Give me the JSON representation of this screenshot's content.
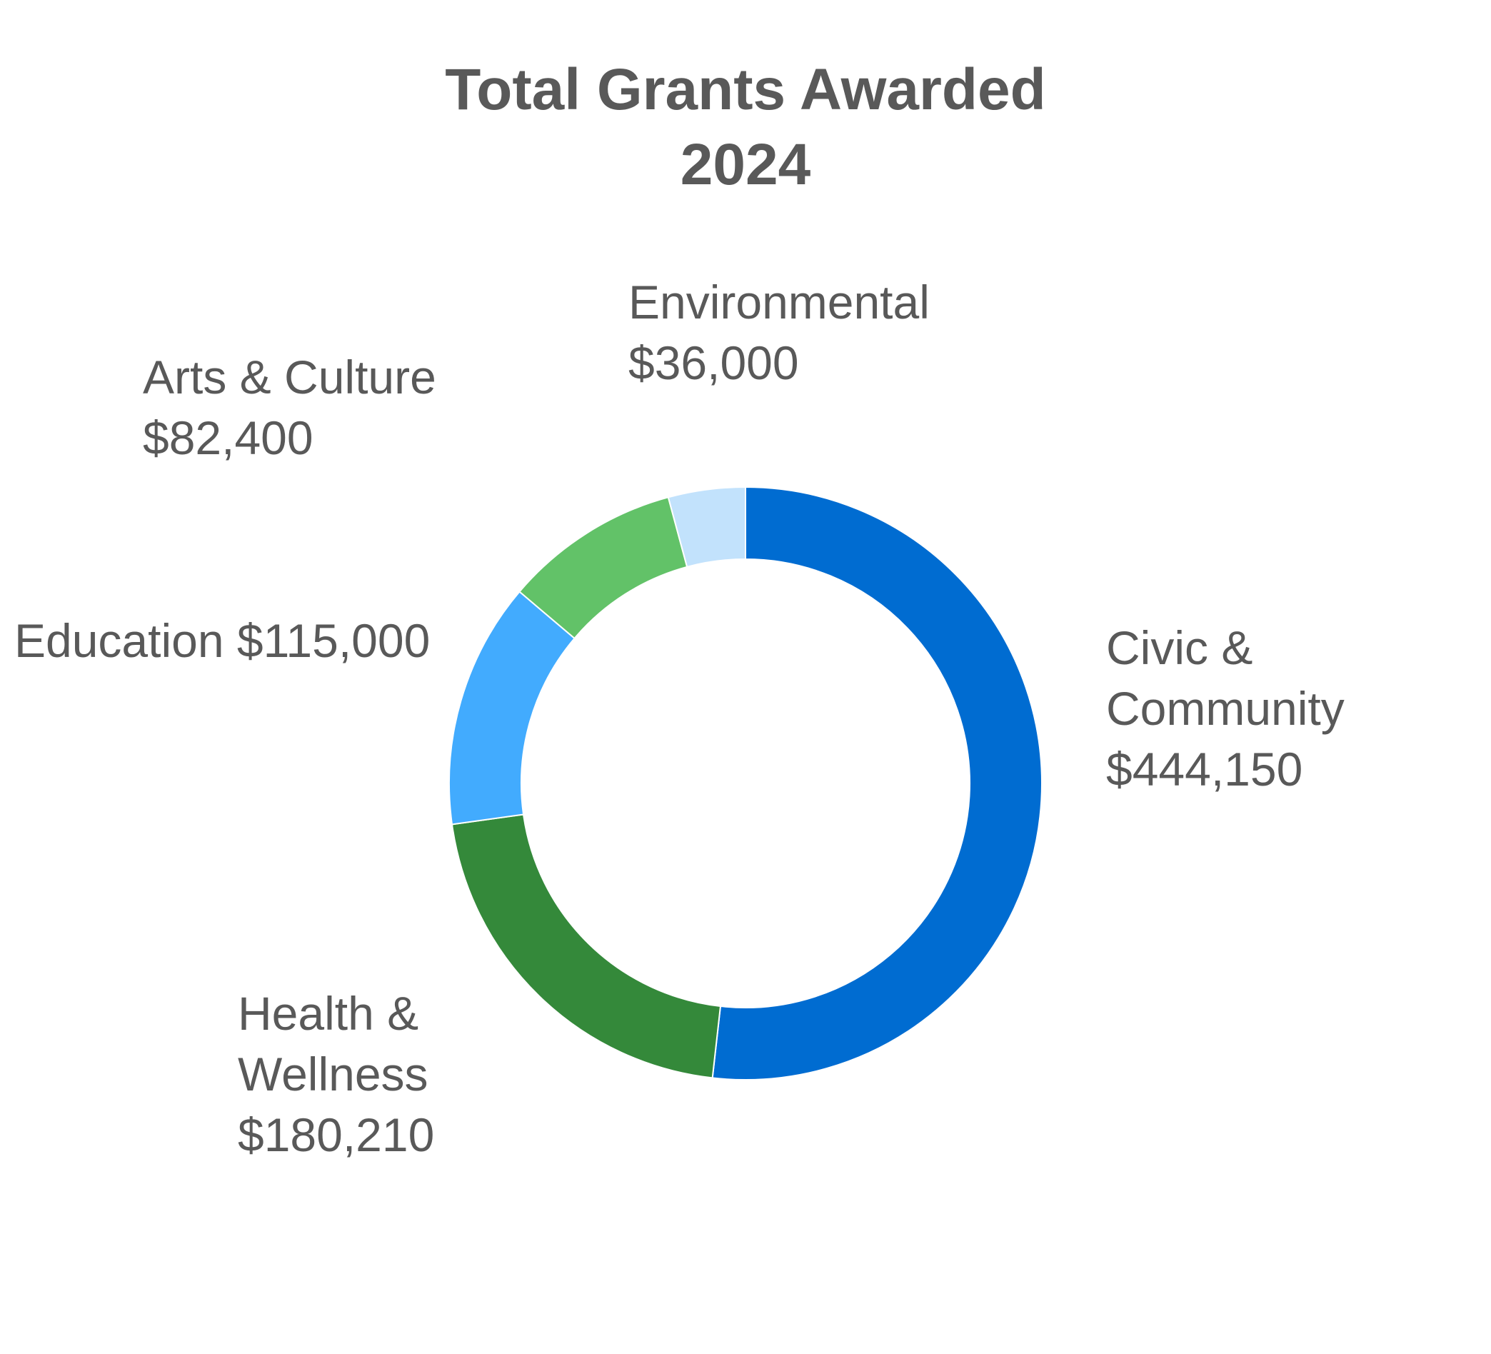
{
  "chart_data": {
    "type": "pie",
    "subtype": "donut",
    "title_lines": [
      "Total Grants Awarded",
      "2024"
    ],
    "slices": [
      {
        "name": "Civic & Community",
        "value": 444150,
        "label_lines": [
          "Civic &",
          "Community",
          "$444,150"
        ],
        "color": "#006CD1"
      },
      {
        "name": "Health & Wellness",
        "value": 180210,
        "label_lines": [
          "Health &",
          "Wellness",
          "$180,210"
        ],
        "color": "#34893A"
      },
      {
        "name": "Education",
        "value": 115000,
        "label_lines": [
          "Education $115,000"
        ],
        "color": "#42ABFE"
      },
      {
        "name": "Arts & Culture",
        "value": 82400,
        "label_lines": [
          "Arts & Culture",
          "$82,400"
        ],
        "color": "#62C268"
      },
      {
        "name": "Environmental",
        "value": 36000,
        "label_lines": [
          "Environmental",
          "$36,000"
        ],
        "color": "#C2E2FC"
      }
    ],
    "start_angle": "top (12 o'clock)",
    "direction": "clockwise",
    "legend": "none (data labels next to slices)"
  }
}
